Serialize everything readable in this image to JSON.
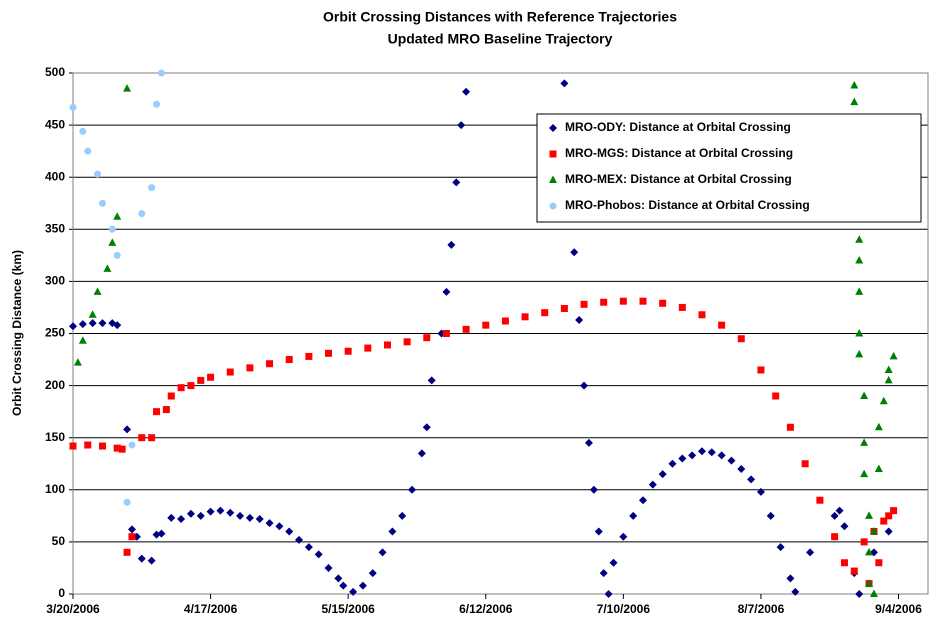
{
  "chart_data": {
    "type": "scatter",
    "title": "Orbit Crossing Distances with Reference Trajectories",
    "subtitle": "Updated MRO Baseline Trajectory",
    "y_label": "Orbit Crossing Distance (km)",
    "xlim": [
      "2006-03-20",
      "2006-09-10"
    ],
    "xticks": [
      {
        "value": "2006-03-20",
        "label": "3/20/2006"
      },
      {
        "value": "2006-04-17",
        "label": "4/17/2006"
      },
      {
        "value": "2006-05-15",
        "label": "5/15/2006"
      },
      {
        "value": "2006-06-12",
        "label": "6/12/2006"
      },
      {
        "value": "2006-07-10",
        "label": "7/10/2006"
      },
      {
        "value": "2006-08-07",
        "label": "8/7/2006"
      },
      {
        "value": "2006-09-04",
        "label": "9/4/2006"
      }
    ],
    "ylim": [
      0,
      500
    ],
    "yticks": [
      0,
      50,
      100,
      150,
      200,
      250,
      300,
      350,
      400,
      450,
      500
    ],
    "grid": true,
    "legend": "upper right",
    "series": [
      {
        "name": "MRO-ODY: Distance at Orbital Crossing",
        "color": "#000080",
        "marker": "diamond",
        "x": [
          "2006-03-20",
          "2006-03-22",
          "2006-03-24",
          "2006-03-26",
          "2006-03-28",
          "2006-03-29",
          "2006-03-31",
          "2006-04-01",
          "2006-04-02",
          "2006-04-03",
          "2006-04-05",
          "2006-04-06",
          "2006-04-07",
          "2006-04-09",
          "2006-04-11",
          "2006-04-13",
          "2006-04-15",
          "2006-04-17",
          "2006-04-19",
          "2006-04-21",
          "2006-04-23",
          "2006-04-25",
          "2006-04-27",
          "2006-04-29",
          "2006-05-01",
          "2006-05-03",
          "2006-05-05",
          "2006-05-07",
          "2006-05-09",
          "2006-05-11",
          "2006-05-13",
          "2006-05-14",
          "2006-05-16",
          "2006-05-18",
          "2006-05-20",
          "2006-05-22",
          "2006-05-24",
          "2006-05-26",
          "2006-05-28",
          "2006-05-30",
          "2006-05-31",
          "2006-06-01",
          "2006-06-03",
          "2006-06-04",
          "2006-06-05",
          "2006-06-06",
          "2006-06-07",
          "2006-06-08",
          "2006-06-28",
          "2006-06-30",
          "2006-07-01",
          "2006-07-02",
          "2006-07-03",
          "2006-07-04",
          "2006-07-05",
          "2006-07-06",
          "2006-07-07",
          "2006-07-08",
          "2006-07-10",
          "2006-07-12",
          "2006-07-14",
          "2006-07-16",
          "2006-07-18",
          "2006-07-20",
          "2006-07-22",
          "2006-07-24",
          "2006-07-26",
          "2006-07-28",
          "2006-07-30",
          "2006-08-01",
          "2006-08-03",
          "2006-08-05",
          "2006-08-07",
          "2006-08-09",
          "2006-08-11",
          "2006-08-13",
          "2006-08-14",
          "2006-08-17",
          "2006-08-22",
          "2006-08-23",
          "2006-08-24",
          "2006-08-26",
          "2006-08-27",
          "2006-08-30",
          "2006-09-02"
        ],
        "values": [
          257,
          259,
          260,
          260,
          260,
          258,
          158,
          62,
          55,
          34,
          32,
          57,
          58,
          73,
          72,
          77,
          75,
          79,
          80,
          78,
          75,
          73,
          72,
          68,
          65,
          60,
          52,
          45,
          38,
          25,
          15,
          8,
          2,
          8,
          20,
          40,
          60,
          75,
          100,
          135,
          160,
          205,
          250,
          290,
          335,
          395,
          450,
          482,
          490,
          328,
          263,
          200,
          145,
          100,
          60,
          20,
          0,
          30,
          55,
          75,
          90,
          105,
          115,
          125,
          130,
          133,
          137,
          136,
          133,
          128,
          120,
          110,
          98,
          75,
          45,
          15,
          2,
          40,
          75,
          80,
          65,
          20,
          0,
          40,
          60
        ]
      },
      {
        "name": "MRO-MGS: Distance at Orbital Crossing",
        "color": "#ff0000",
        "marker": "square",
        "x": [
          "2006-03-20",
          "2006-03-23",
          "2006-03-26",
          "2006-03-29",
          "2006-03-30",
          "2006-03-31",
          "2006-04-01",
          "2006-04-03",
          "2006-04-05",
          "2006-04-06",
          "2006-04-08",
          "2006-04-09",
          "2006-04-11",
          "2006-04-13",
          "2006-04-15",
          "2006-04-17",
          "2006-04-21",
          "2006-04-25",
          "2006-04-29",
          "2006-05-03",
          "2006-05-07",
          "2006-05-11",
          "2006-05-15",
          "2006-05-19",
          "2006-05-23",
          "2006-05-27",
          "2006-05-31",
          "2006-06-04",
          "2006-06-08",
          "2006-06-12",
          "2006-06-16",
          "2006-06-20",
          "2006-06-24",
          "2006-06-28",
          "2006-07-02",
          "2006-07-06",
          "2006-07-10",
          "2006-07-14",
          "2006-07-18",
          "2006-07-22",
          "2006-07-26",
          "2006-07-30",
          "2006-08-03",
          "2006-08-07",
          "2006-08-10",
          "2006-08-13",
          "2006-08-16",
          "2006-08-19",
          "2006-08-22",
          "2006-08-24",
          "2006-08-26",
          "2006-08-28",
          "2006-08-29",
          "2006-08-30",
          "2006-08-31",
          "2006-09-01",
          "2006-09-02",
          "2006-09-03"
        ],
        "values": [
          142,
          143,
          142,
          140,
          139,
          40,
          55,
          150,
          150,
          175,
          177,
          190,
          198,
          200,
          205,
          208,
          213,
          217,
          221,
          225,
          228,
          231,
          233,
          236,
          239,
          242,
          246,
          250,
          254,
          258,
          262,
          266,
          270,
          274,
          278,
          280,
          281,
          281,
          279,
          275,
          268,
          258,
          245,
          215,
          190,
          160,
          125,
          90,
          55,
          30,
          22,
          50,
          10,
          60,
          30,
          70,
          75,
          80
        ]
      },
      {
        "name": "MRO-MEX: Distance at Orbital Crossing",
        "color": "#008000",
        "marker": "triangle",
        "x": [
          "2006-03-21",
          "2006-03-22",
          "2006-03-24",
          "2006-03-25",
          "2006-03-27",
          "2006-03-28",
          "2006-03-29",
          "2006-03-31",
          "2006-08-26",
          "2006-08-26",
          "2006-08-27",
          "2006-08-27",
          "2006-08-27",
          "2006-08-27",
          "2006-08-27",
          "2006-08-28",
          "2006-08-28",
          "2006-08-28",
          "2006-08-29",
          "2006-08-29",
          "2006-08-29",
          "2006-08-30",
          "2006-08-30",
          "2006-08-31",
          "2006-08-31",
          "2006-09-01",
          "2006-09-02",
          "2006-09-02",
          "2006-09-03"
        ],
        "values": [
          222,
          243,
          268,
          290,
          312,
          337,
          362,
          485,
          488,
          472,
          340,
          320,
          290,
          250,
          230,
          190,
          145,
          115,
          75,
          40,
          10,
          0,
          60,
          120,
          160,
          185,
          205,
          215,
          228
        ]
      },
      {
        "name": "MRO-Phobos: Distance at Orbital Crossing",
        "color": "#99ccff",
        "marker": "circle",
        "x": [
          "2006-03-20",
          "2006-03-22",
          "2006-03-23",
          "2006-03-25",
          "2006-03-26",
          "2006-03-28",
          "2006-03-29",
          "2006-03-31",
          "2006-04-01",
          "2006-04-03",
          "2006-04-05",
          "2006-04-06",
          "2006-04-07"
        ],
        "values": [
          467,
          444,
          425,
          403,
          375,
          350,
          325,
          88,
          143,
          365,
          390,
          470,
          500
        ]
      }
    ]
  }
}
